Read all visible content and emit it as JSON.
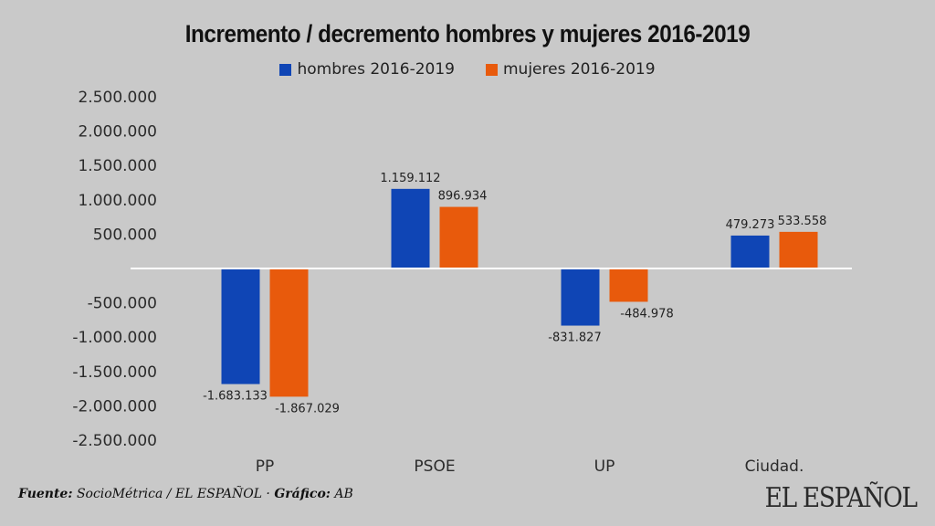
{
  "chart_data": {
    "type": "bar",
    "title": "Incremento / decremento hombres y mujeres 2016-2019",
    "categories": [
      "PP",
      "PSOE",
      "UP",
      "Ciudad."
    ],
    "series": [
      {
        "name": "hombres 2016-2019",
        "color": "#0f45b5",
        "values": [
          -1683133,
          1159112,
          -831827,
          479273
        ],
        "labels": [
          "-1.683.133",
          "1.159.112",
          "-831.827",
          "479.273"
        ]
      },
      {
        "name": "mujeres 2016-2019",
        "color": "#e85a0c",
        "values": [
          -1867029,
          896934,
          -484978,
          533558
        ],
        "labels": [
          "-1.867.029",
          "896.934",
          "-484.978",
          "533.558"
        ]
      }
    ],
    "ylim": [
      -2500000,
      2500000
    ],
    "yticks": [
      2500000,
      2000000,
      1500000,
      1000000,
      500000,
      0,
      -500000,
      -1000000,
      -1500000,
      -2000000,
      -2500000
    ],
    "ytick_labels": [
      "2.500.000",
      "2.000.000",
      "1.500.000",
      "1.000.000",
      "500.000",
      "",
      "-500.000",
      "-1.000.000",
      "-1.500.000",
      "-2.000.000",
      "-2.500.000"
    ],
    "xlabel": "",
    "ylabel": "",
    "grid": false,
    "legend": "top-center"
  },
  "footer": {
    "source_label": "Fuente:",
    "source_text": " SocioMétrica / EL ESPAÑOL · ",
    "graphic_label": "Gráfico:",
    "graphic_text": " AB"
  },
  "brand": "EL ESPAÑOL"
}
